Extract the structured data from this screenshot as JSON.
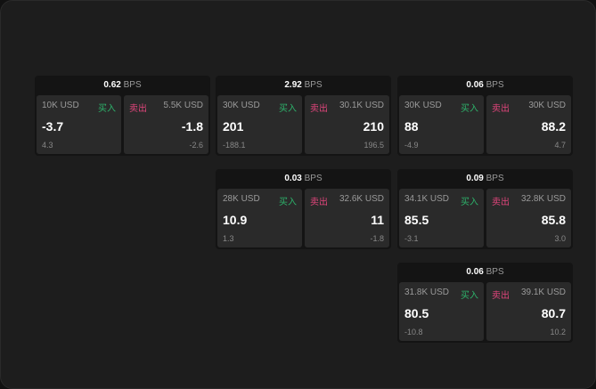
{
  "colors": {
    "buy": "#2db36b",
    "sell": "#e0457b",
    "background": "#1d1d1d"
  },
  "unit": "BPS",
  "buy_label": "买入",
  "sell_label": "卖出",
  "cards": [
    {
      "spread": "0.62",
      "bid": {
        "size": "10K USD",
        "price": "-3.7",
        "change": "4.3"
      },
      "ask": {
        "size": "5.5K USD",
        "price": "-1.8",
        "change": "-2.6"
      }
    },
    {
      "spread": "2.92",
      "bid": {
        "size": "30K USD",
        "price": "201",
        "change": "-188.1"
      },
      "ask": {
        "size": "30.1K USD",
        "price": "210",
        "change": "196.5"
      }
    },
    {
      "spread": "0.06",
      "bid": {
        "size": "30K USD",
        "price": "88",
        "change": "-4.9"
      },
      "ask": {
        "size": "30K USD",
        "price": "88.2",
        "change": "4.7"
      }
    },
    {
      "spread": "0.03",
      "bid": {
        "size": "28K USD",
        "price": "10.9",
        "change": "1.3"
      },
      "ask": {
        "size": "32.6K USD",
        "price": "11",
        "change": "-1.8"
      }
    },
    {
      "spread": "0.09",
      "bid": {
        "size": "34.1K USD",
        "price": "85.5",
        "change": "-3.1"
      },
      "ask": {
        "size": "32.8K USD",
        "price": "85.8",
        "change": "3.0"
      }
    },
    {
      "spread": "0.06",
      "bid": {
        "size": "31.8K USD",
        "price": "80.5",
        "change": "-10.8"
      },
      "ask": {
        "size": "39.1K USD",
        "price": "80.7",
        "change": "10.2"
      }
    }
  ]
}
